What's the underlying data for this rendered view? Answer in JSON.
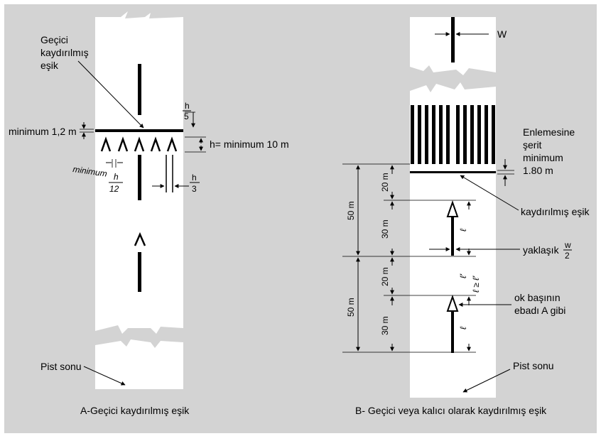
{
  "colors": {
    "background": "#d3d3d3",
    "runway": "#ffffff",
    "ink": "#000000"
  },
  "left_panel": {
    "caption": "A-Geçici kaydırılmış eşik",
    "threshold_label": [
      "Geçici",
      "kaydırılmış",
      "eşik"
    ],
    "min_width": "minimum 1,2 m",
    "h_over_5_num": "h",
    "h_over_5_den": "5",
    "h_min": "h= minimum 10 m",
    "min_word": "minimum",
    "h_over_12_num": "h",
    "h_over_12_den": "12",
    "h_over_3_num": "h",
    "h_over_3_den": "3",
    "runway_end": "Pist sonu"
  },
  "right_panel": {
    "caption": "B- Geçici veya kalıcı olarak kaydırılmış eşik",
    "w_label": "W",
    "transverse": [
      "Enlemesine",
      "şerit",
      "minimum",
      "1.80 m"
    ],
    "displaced_threshold": "kaydırılmış eşik",
    "dim_50a": "50 m",
    "dim_20a": "20 m",
    "dim_30a": "30 m",
    "dim_50b": "50 m",
    "dim_20b": "20 m",
    "dim_30b": "30 m",
    "approx_prefix": "yaklaşık",
    "w_over_2_num": "w",
    "w_over_2_den": "2",
    "ell": "ℓ",
    "ell_rel": "ℓ ≥ ℓ'",
    "ell_prime": "ℓ'",
    "arrowhead": [
      "ok başının",
      "ebadı A gibi"
    ],
    "runway_end": "Pist sonu"
  }
}
